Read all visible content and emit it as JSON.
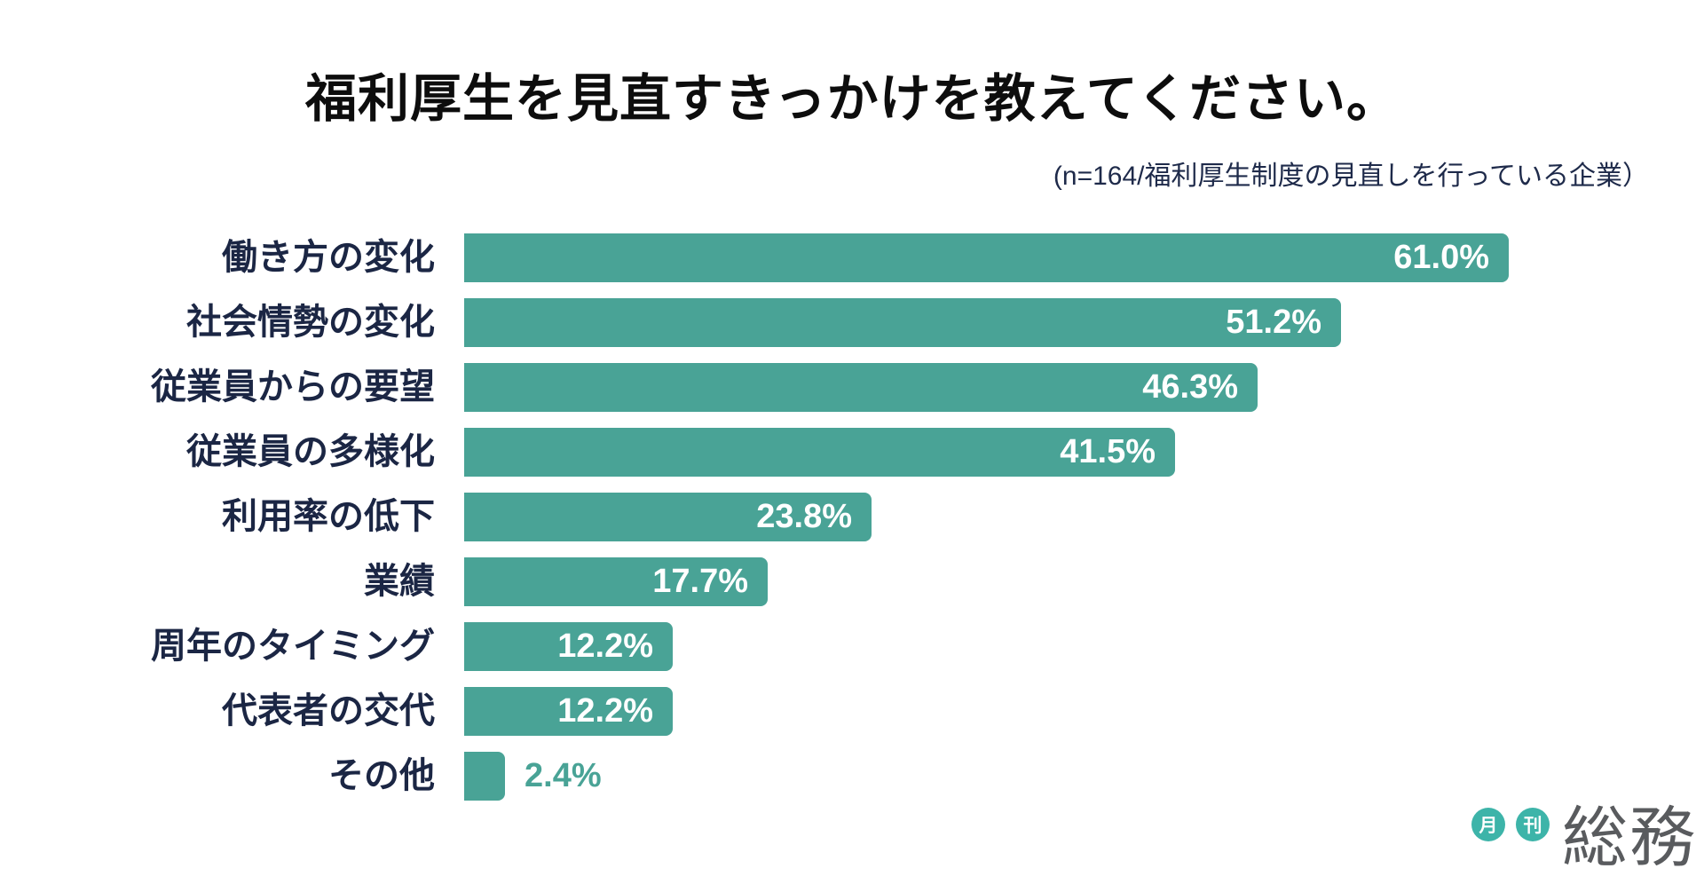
{
  "header": {
    "title": "福利厚生を見直すきっかけを教えてください。",
    "subtitle": "(n=164/福利厚生制度の見直しを行っている企業）"
  },
  "chart_data": {
    "type": "bar",
    "orientation": "horizontal",
    "title": "福利厚生を見直すきっかけを教えてください。",
    "subtitle_note": "(n=164/福利厚生制度の見直しを行っている企業）",
    "sample_size": 164,
    "unit": "%",
    "categories": [
      "働き方の変化",
      "社会情勢の変化",
      "従業員からの要望",
      "従業員の多様化",
      "利用率の低下",
      "業績",
      "周年のタイミング",
      "代表者の交代",
      "その他"
    ],
    "values": [
      61.0,
      51.2,
      46.3,
      41.5,
      23.8,
      17.7,
      12.2,
      12.2,
      2.4
    ],
    "value_labels": [
      "61.0%",
      "51.2%",
      "46.3%",
      "41.5%",
      "23.8%",
      "17.7%",
      "12.2%",
      "12.2%",
      "2.4%"
    ],
    "value_label_placement": [
      "inside",
      "inside",
      "inside",
      "inside",
      "inside",
      "inside",
      "inside",
      "inside",
      "outside"
    ],
    "xlim": [
      0,
      63
    ],
    "grid": false,
    "legend": false,
    "bar_color": "#49A396",
    "category_label_color": "#1B2644",
    "value_label_color_inside": "#FFFFFF",
    "value_label_color_outside": "#49A396",
    "title_color": "#0D0D0D",
    "subtitle_color": "#1E2A4A"
  },
  "logo": {
    "badges": [
      "月",
      "刊"
    ],
    "brand": "総務",
    "badge_color": "#3DB4A9",
    "brand_color": "#595B5E"
  }
}
